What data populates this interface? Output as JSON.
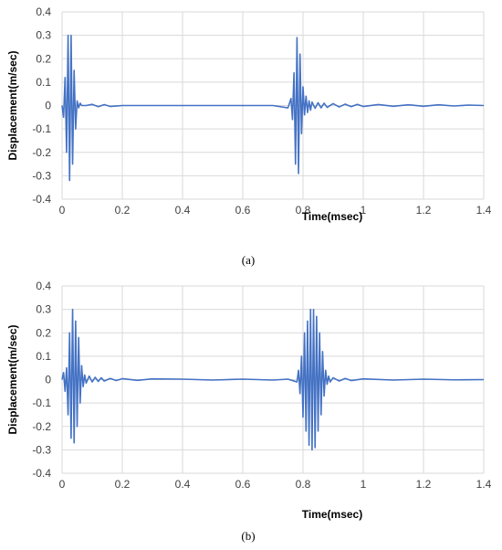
{
  "chart_data": [
    {
      "type": "line",
      "panel": "a",
      "caption": "(a)",
      "xlabel": "Time(msec)",
      "ylabel": "Displacement(m/sec)",
      "xlim": [
        0,
        1.4
      ],
      "ylim": [
        -0.4,
        0.4
      ],
      "xticks": [
        "0",
        "0.2",
        "0.4",
        "0.6",
        "0.8",
        "1",
        "1.2",
        "1.4"
      ],
      "yticks": [
        "0.4",
        "0.3",
        "0.2",
        "0.1",
        "0",
        "-0.1",
        "-0.2",
        "-0.3",
        "-0.4"
      ],
      "color": "#4472c4",
      "series": [
        {
          "x": [
            0,
            0.005,
            0.01,
            0.015,
            0.02,
            0.025,
            0.03,
            0.035,
            0.04,
            0.045,
            0.05,
            0.055,
            0.06,
            0.065,
            0.07,
            0.08,
            0.1,
            0.12,
            0.14,
            0.16,
            0.2,
            0.3,
            0.4,
            0.5,
            0.6,
            0.7,
            0.75,
            0.76,
            0.765,
            0.77,
            0.775,
            0.78,
            0.785,
            0.79,
            0.795,
            0.8,
            0.805,
            0.81,
            0.815,
            0.82,
            0.825,
            0.83,
            0.84,
            0.85,
            0.86,
            0.87,
            0.88,
            0.9,
            0.92,
            0.94,
            0.96,
            0.98,
            1.0,
            1.05,
            1.1,
            1.15,
            1.2,
            1.25,
            1.3,
            1.35,
            1.4
          ],
          "y": [
            0,
            -0.05,
            0.12,
            -0.2,
            0.3,
            -0.32,
            0.3,
            -0.25,
            0.15,
            -0.1,
            0.02,
            -0.01,
            0.01,
            0,
            0,
            0,
            0.005,
            -0.005,
            0.004,
            -0.004,
            0,
            0,
            0,
            0,
            0,
            0,
            -0.01,
            0.03,
            -0.06,
            0.14,
            -0.25,
            0.29,
            -0.29,
            0.22,
            -0.12,
            0.08,
            -0.04,
            0.04,
            -0.03,
            0.02,
            -0.02,
            0.015,
            -0.012,
            0.012,
            -0.01,
            0.01,
            -0.008,
            0.008,
            -0.006,
            0.006,
            -0.005,
            0.005,
            -0.004,
            0.004,
            -0.003,
            0.003,
            -0.003,
            0.003,
            -0.002,
            0.002,
            0
          ]
        }
      ]
    },
    {
      "type": "line",
      "panel": "b",
      "caption": "(b)",
      "xlabel": "Time(msec)",
      "ylabel": "Displacement(m/sec)",
      "xlim": [
        0,
        1.4
      ],
      "ylim": [
        -0.4,
        0.4
      ],
      "xticks": [
        "0",
        "0.2",
        "0.4",
        "0.6",
        "0.8",
        "1",
        "1.2",
        "1.4"
      ],
      "yticks": [
        "0.4",
        "0.3",
        "0.2",
        "0.1",
        "0",
        "-0.1",
        "-0.2",
        "-0.3",
        "-0.4"
      ],
      "color": "#4472c4",
      "series": [
        {
          "x": [
            0,
            0.005,
            0.01,
            0.015,
            0.02,
            0.025,
            0.03,
            0.035,
            0.04,
            0.045,
            0.05,
            0.055,
            0.06,
            0.065,
            0.07,
            0.075,
            0.08,
            0.09,
            0.1,
            0.11,
            0.12,
            0.13,
            0.14,
            0.16,
            0.18,
            0.2,
            0.25,
            0.3,
            0.4,
            0.5,
            0.6,
            0.7,
            0.75,
            0.78,
            0.785,
            0.79,
            0.795,
            0.8,
            0.805,
            0.81,
            0.815,
            0.82,
            0.825,
            0.83,
            0.835,
            0.84,
            0.845,
            0.85,
            0.855,
            0.86,
            0.865,
            0.87,
            0.875,
            0.88,
            0.885,
            0.89,
            0.9,
            0.92,
            0.94,
            0.96,
            1.0,
            1.1,
            1.2,
            1.3,
            1.4
          ],
          "y": [
            0,
            0.03,
            -0.05,
            0.05,
            -0.15,
            0.2,
            -0.25,
            0.3,
            -0.27,
            0.25,
            -0.2,
            0.18,
            -0.1,
            0.06,
            -0.03,
            0.02,
            -0.015,
            0.015,
            -0.01,
            0.01,
            -0.008,
            0.008,
            -0.006,
            0.005,
            -0.004,
            0.004,
            -0.003,
            0.003,
            0.002,
            -0.002,
            0.002,
            -0.002,
            0.002,
            -0.01,
            0.04,
            -0.06,
            0.1,
            -0.16,
            0.2,
            -0.22,
            0.25,
            -0.28,
            0.3,
            -0.3,
            0.3,
            -0.29,
            0.27,
            -0.22,
            0.2,
            -0.15,
            0.12,
            -0.07,
            0.04,
            -0.02,
            0.015,
            -0.01,
            0.008,
            -0.006,
            0.005,
            -0.004,
            0.003,
            -0.002,
            0.002,
            -0.001,
            0
          ]
        }
      ]
    }
  ]
}
